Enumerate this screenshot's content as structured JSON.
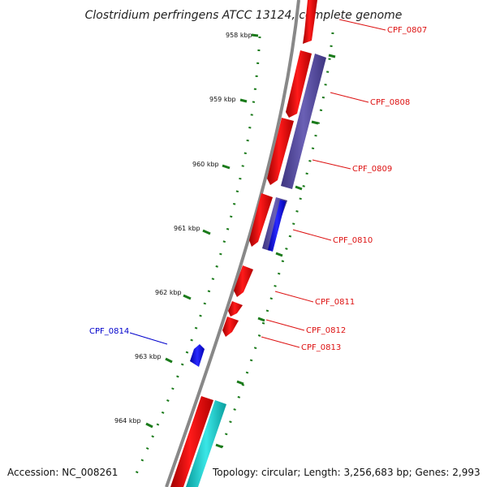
{
  "title": "Clostridium perfringens ATCC 13124, complete genome",
  "footer": {
    "accession": "Accession: NC_008261",
    "topology": "Topology: circular; Length: 3,256,683 bp; Genes: 2,993"
  },
  "ruler": {
    "labels": [
      "958 kbp",
      "959 kbp",
      "960 kbp",
      "961 kbp",
      "962 kbp",
      "963 kbp",
      "964 kbp"
    ]
  },
  "genes": [
    {
      "name": "CPF_0807",
      "color": "#dd1111"
    },
    {
      "name": "CPF_0808",
      "color": "#dd1111"
    },
    {
      "name": "CPF_0809",
      "color": "#dd1111"
    },
    {
      "name": "CPF_0810",
      "color": "#dd1111"
    },
    {
      "name": "CPF_0811",
      "color": "#dd1111"
    },
    {
      "name": "CPF_0812",
      "color": "#dd1111"
    },
    {
      "name": "CPF_0813",
      "color": "#dd1111"
    },
    {
      "name": "CPF_0814",
      "color": "#0000cc"
    }
  ],
  "colors": {
    "forward_cds": "#ff0000",
    "reverse_cds": "#0000ff",
    "purple_track": "#5a4fa0",
    "cyan_track": "#16cccc",
    "backbone": "#888888",
    "ticks": "#1a7a1a"
  }
}
